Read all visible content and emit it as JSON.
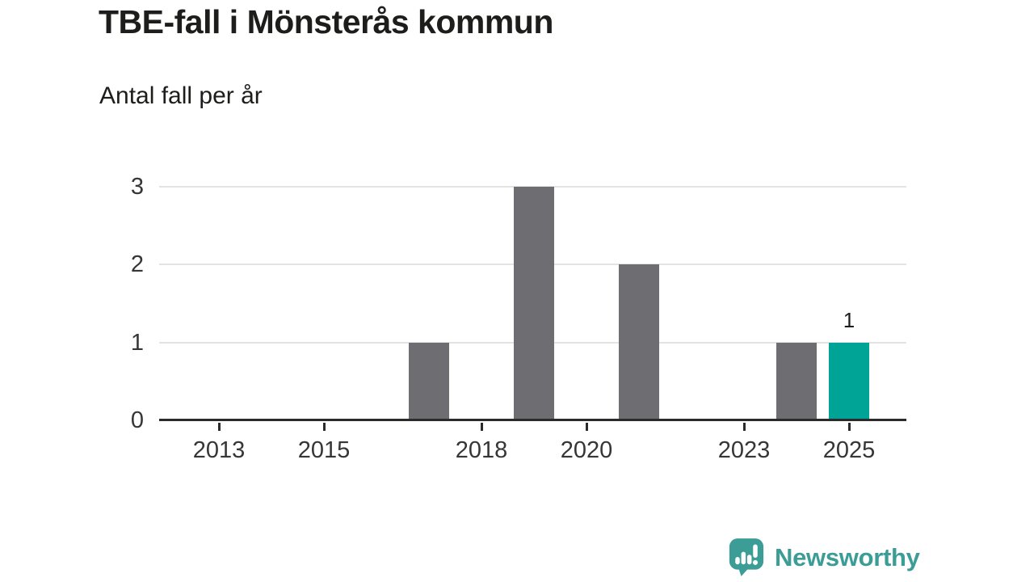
{
  "header": {
    "title": "TBE-fall i Mönsterås kommun",
    "subtitle": "Antal fall per år"
  },
  "chart_data": {
    "type": "bar",
    "title": "TBE-fall i Mönsterås kommun",
    "ylabel": "Antal fall per år",
    "xlabel": "",
    "x": [
      2012,
      2013,
      2014,
      2015,
      2016,
      2017,
      2018,
      2019,
      2020,
      2021,
      2022,
      2023,
      2024,
      2025
    ],
    "values": [
      0,
      0,
      0,
      0,
      0,
      1,
      0,
      3,
      0,
      2,
      0,
      0,
      1,
      1
    ],
    "highlight": {
      "x": 2025,
      "value": 1,
      "label": "1"
    },
    "xticks": [
      2013,
      2015,
      2018,
      2020,
      2023,
      2025
    ],
    "yticks": [
      0,
      1,
      2,
      3
    ],
    "ylim": [
      0,
      3
    ],
    "grid": "horizontal-only",
    "legend": "none",
    "colors": {
      "bar": "#6e6d72",
      "highlight_bar": "#00a496",
      "gridline": "#e3e3e3",
      "axis": "#2b2b2b",
      "tick_text": "#363636",
      "title_text": "#1d1d1b",
      "value_label_text": "#1d1d1b"
    }
  },
  "footer": {
    "logo_text": "Newsworthy",
    "logo_color": "#3c9d97"
  }
}
